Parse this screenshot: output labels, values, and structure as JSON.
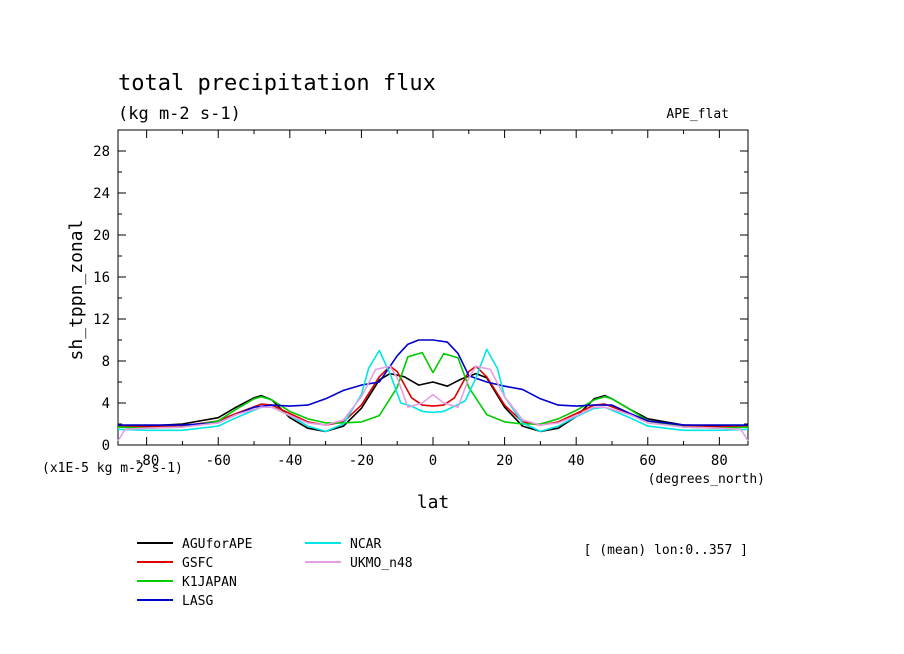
{
  "chart_data": {
    "type": "line",
    "title": "total precipitation flux",
    "subtitle": "(kg m-2 s-1)",
    "experiment": "APE_flat",
    "xlabel": "lat",
    "x_units": "(degrees_north)",
    "ylabel": "sh_tppn_zonal",
    "y_scale_note": "(x1E-5 kg m-2 s-1)",
    "annotation": "[ (mean) lon:0..357 ]",
    "xlim": [
      -88,
      88
    ],
    "ylim": [
      0,
      30
    ],
    "x_ticks": [
      -80,
      -60,
      -40,
      -20,
      0,
      20,
      40,
      60,
      80
    ],
    "y_ticks": [
      0,
      4,
      8,
      12,
      16,
      20,
      24,
      28
    ],
    "legend_placement": "bottom-left",
    "grid": false,
    "series": [
      {
        "name": "AGUforAPE",
        "color": "#000000",
        "x": [
          -88,
          -80,
          -70,
          -60,
          -55,
          -50,
          -48,
          -45,
          -40,
          -35,
          -30,
          -25,
          -20,
          -15,
          -12,
          -8,
          -4,
          0,
          4,
          8,
          12,
          15,
          20,
          25,
          30,
          35,
          40,
          45,
          48,
          50,
          55,
          60,
          70,
          80,
          88
        ],
        "y": [
          1.8,
          1.8,
          2.0,
          2.6,
          3.6,
          4.5,
          4.7,
          4.3,
          2.6,
          1.6,
          1.3,
          1.8,
          3.5,
          6.2,
          6.8,
          6.5,
          5.7,
          6.0,
          5.6,
          6.3,
          6.8,
          6.4,
          3.6,
          1.8,
          1.3,
          1.6,
          2.7,
          4.4,
          4.7,
          4.4,
          3.4,
          2.5,
          1.9,
          1.8,
          1.8
        ]
      },
      {
        "name": "GSFC",
        "color": "#e00000",
        "x": [
          -88,
          -80,
          -70,
          -60,
          -55,
          -48,
          -45,
          -40,
          -35,
          -30,
          -25,
          -20,
          -15,
          -12,
          -10,
          -6,
          -3,
          0,
          3,
          6,
          10,
          12,
          15,
          20,
          25,
          30,
          35,
          40,
          45,
          48,
          55,
          60,
          70,
          80,
          88
        ],
        "y": [
          1.8,
          1.7,
          1.8,
          2.3,
          3.0,
          3.9,
          3.8,
          3.0,
          2.2,
          1.9,
          2.2,
          3.8,
          6.5,
          7.5,
          7.0,
          4.5,
          3.8,
          3.7,
          3.8,
          4.5,
          7.0,
          7.5,
          6.5,
          3.8,
          2.2,
          1.9,
          2.2,
          3.0,
          3.8,
          3.9,
          3.0,
          2.3,
          1.8,
          1.7,
          1.8
        ]
      },
      {
        "name": "K1JAPAN",
        "color": "#00cc00",
        "x": [
          -88,
          -80,
          -70,
          -60,
          -55,
          -50,
          -48,
          -45,
          -40,
          -35,
          -30,
          -25,
          -20,
          -15,
          -10,
          -7,
          -3,
          0,
          3,
          7,
          10,
          15,
          20,
          25,
          30,
          35,
          40,
          45,
          48,
          50,
          55,
          60,
          70,
          80,
          88
        ],
        "y": [
          1.7,
          1.6,
          1.7,
          2.3,
          3.4,
          4.4,
          4.6,
          4.3,
          3.2,
          2.5,
          2.1,
          2.1,
          2.2,
          2.8,
          5.5,
          8.4,
          8.8,
          6.9,
          8.7,
          8.3,
          5.5,
          2.9,
          2.2,
          2.0,
          2.0,
          2.5,
          3.3,
          4.3,
          4.6,
          4.4,
          3.4,
          2.3,
          1.7,
          1.6,
          1.7
        ]
      },
      {
        "name": "LASG",
        "color": "#0000cc",
        "x": [
          -88,
          -80,
          -70,
          -60,
          -55,
          -50,
          -45,
          -40,
          -35,
          -30,
          -25,
          -20,
          -15,
          -10,
          -7,
          -4,
          0,
          4,
          7,
          10,
          15,
          20,
          25,
          30,
          35,
          40,
          45,
          50,
          55,
          60,
          70,
          80,
          88
        ],
        "y": [
          1.9,
          1.9,
          1.9,
          2.1,
          2.9,
          3.6,
          3.8,
          3.7,
          3.8,
          4.4,
          5.2,
          5.7,
          6.0,
          8.5,
          9.6,
          10.0,
          10.0,
          9.8,
          8.7,
          6.6,
          6.0,
          5.6,
          5.3,
          4.4,
          3.8,
          3.7,
          3.8,
          3.8,
          3.0,
          2.3,
          1.9,
          1.9,
          1.9
        ]
      },
      {
        "name": "NCAR",
        "color": "#00e5e5",
        "x": [
          -88,
          -80,
          -70,
          -60,
          -55,
          -48,
          -45,
          -40,
          -35,
          -30,
          -25,
          -20,
          -18,
          -15,
          -12,
          -9,
          -6,
          -3,
          0,
          3,
          6,
          9,
          12,
          15,
          18,
          20,
          25,
          30,
          35,
          40,
          45,
          48,
          55,
          60,
          70,
          80,
          88
        ],
        "y": [
          1.5,
          1.4,
          1.4,
          1.8,
          2.6,
          3.6,
          3.6,
          2.8,
          1.8,
          1.3,
          2.0,
          4.8,
          7.3,
          9.0,
          6.8,
          4.0,
          3.7,
          3.2,
          3.1,
          3.2,
          3.7,
          4.2,
          6.4,
          9.1,
          7.3,
          4.6,
          2.1,
          1.3,
          1.8,
          2.7,
          3.5,
          3.6,
          2.6,
          1.8,
          1.4,
          1.4,
          1.5
        ]
      },
      {
        "name": "UKMO_n48",
        "color": "#e5a0e5",
        "x": [
          -88,
          -86,
          -80,
          -70,
          -60,
          -55,
          -48,
          -45,
          -40,
          -35,
          -30,
          -25,
          -20,
          -16,
          -12,
          -10,
          -7,
          -3,
          0,
          3,
          7,
          10,
          12,
          16,
          20,
          25,
          30,
          35,
          40,
          45,
          48,
          55,
          60,
          70,
          80,
          86,
          88
        ],
        "y": [
          0.4,
          1.5,
          1.6,
          1.7,
          2.1,
          2.9,
          3.6,
          3.6,
          2.8,
          2.1,
          1.9,
          2.4,
          4.6,
          7.2,
          7.5,
          6.4,
          3.6,
          4.0,
          4.8,
          4.0,
          3.6,
          6.4,
          7.5,
          7.2,
          4.6,
          2.4,
          1.9,
          2.1,
          2.8,
          3.6,
          3.6,
          2.9,
          2.1,
          1.7,
          1.6,
          1.5,
          0.4
        ]
      }
    ]
  }
}
